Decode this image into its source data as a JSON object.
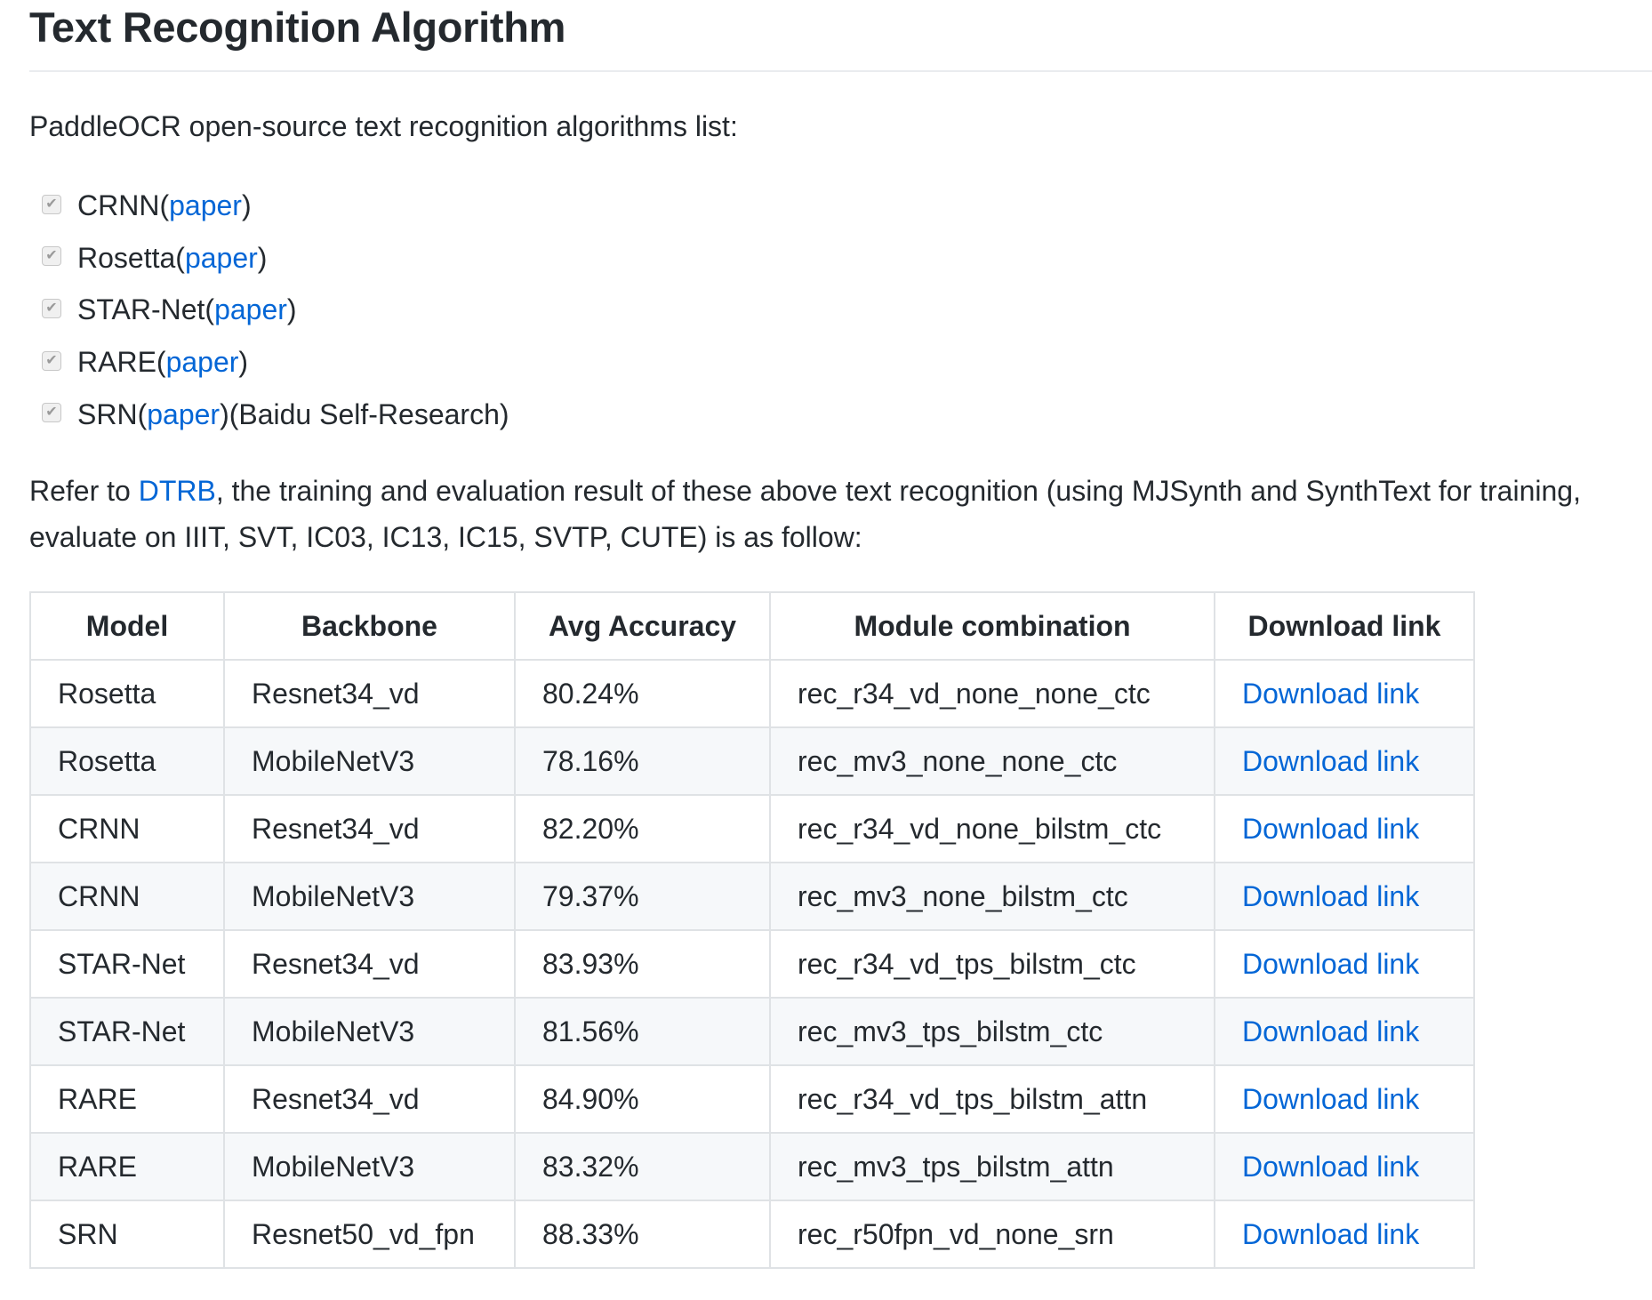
{
  "heading": "Text Recognition Algorithm",
  "intro": "PaddleOCR open-source text recognition algorithms list:",
  "algorithms": [
    {
      "name": "CRNN",
      "link": "paper",
      "note": "",
      "checked": true
    },
    {
      "name": "Rosetta",
      "link": "paper",
      "note": "",
      "checked": true
    },
    {
      "name": "STAR-Net",
      "link": "paper",
      "note": "",
      "checked": true
    },
    {
      "name": "RARE",
      "link": "paper",
      "note": "",
      "checked": true
    },
    {
      "name": "SRN",
      "link": "paper",
      "note": "(Baidu Self-Research)",
      "checked": true
    }
  ],
  "refer": {
    "prefix": "Refer to ",
    "link": "DTRB",
    "suffix": ", the training and evaluation result of these above text recognition (using MJSynth and SynthText for training, evaluate on IIIT, SVT, IC03, IC13, IC15, SVTP, CUTE) is as follow:"
  },
  "table": {
    "headers": [
      "Model",
      "Backbone",
      "Avg Accuracy",
      "Module combination",
      "Download link"
    ],
    "rows": [
      [
        "Rosetta",
        "Resnet34_vd",
        "80.24%",
        "rec_r34_vd_none_none_ctc",
        "Download link"
      ],
      [
        "Rosetta",
        "MobileNetV3",
        "78.16%",
        "rec_mv3_none_none_ctc",
        "Download link"
      ],
      [
        "CRNN",
        "Resnet34_vd",
        "82.20%",
        "rec_r34_vd_none_bilstm_ctc",
        "Download link"
      ],
      [
        "CRNN",
        "MobileNetV3",
        "79.37%",
        "rec_mv3_none_bilstm_ctc",
        "Download link"
      ],
      [
        "STAR-Net",
        "Resnet34_vd",
        "83.93%",
        "rec_r34_vd_tps_bilstm_ctc",
        "Download link"
      ],
      [
        "STAR-Net",
        "MobileNetV3",
        "81.56%",
        "rec_mv3_tps_bilstm_ctc",
        "Download link"
      ],
      [
        "RARE",
        "Resnet34_vd",
        "84.90%",
        "rec_r34_vd_tps_bilstm_attn",
        "Download link"
      ],
      [
        "RARE",
        "MobileNetV3",
        "83.32%",
        "rec_mv3_tps_bilstm_attn",
        "Download link"
      ],
      [
        "SRN",
        "Resnet50_vd_fpn",
        "88.33%",
        "rec_r50fpn_vd_none_srn",
        "Download link"
      ]
    ]
  },
  "colors": {
    "text": "#24292e",
    "link": "#0366d6",
    "border": "#dfe2e5",
    "stripe": "#f6f8fa"
  }
}
